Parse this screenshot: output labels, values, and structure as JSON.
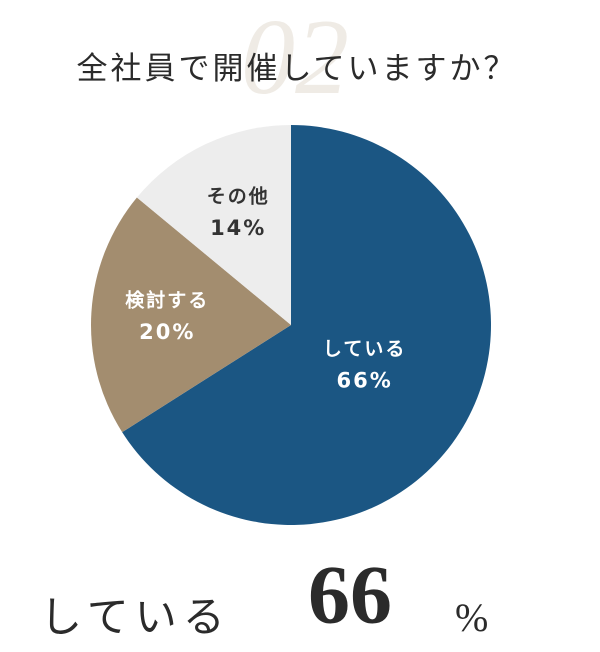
{
  "chart_data": {
    "type": "pie",
    "section_number": "02",
    "title": "全社員で開催していますか？",
    "categories": [
      "している",
      "検討する",
      "その他"
    ],
    "values": [
      66,
      20,
      14
    ],
    "value_labels": [
      "66%",
      "20%",
      "14%"
    ],
    "colors": [
      "#1b5683",
      "#a38d6f",
      "#ededed"
    ],
    "label_colors": [
      "#ffffff",
      "#ffffff",
      "#333333"
    ],
    "callout": {
      "text": "している",
      "value": 66,
      "unit": "%"
    }
  }
}
